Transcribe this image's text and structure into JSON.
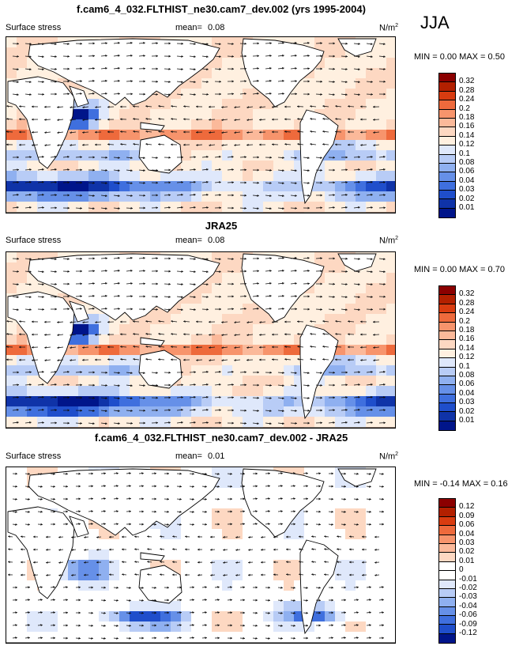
{
  "season": "JJA",
  "panels": [
    {
      "title": "f.cam6_4_032.FLTHIST_ne30.cam7_dev.002 (yrs 1995-2004)",
      "variable": "Surface stress",
      "mean_label": "mean=",
      "mean_value": "0.08",
      "units": "N/m",
      "units_exp": "2",
      "minmax": "MIN =  0.00 MAX =  0.50",
      "palette": "abs"
    },
    {
      "title": "JRA25",
      "variable": "Surface stress",
      "mean_label": "mean=",
      "mean_value": "0.08",
      "units": "N/m",
      "units_exp": "2",
      "minmax": "MIN =  0.00 MAX =  0.70",
      "palette": "abs"
    },
    {
      "title": "f.cam6_4_032.FLTHIST_ne30.cam7_dev.002 - JRA25",
      "variable": "Surface stress",
      "mean_label": "mean=",
      "mean_value": "0.01",
      "units": "N/m",
      "units_exp": "2",
      "minmax": "MIN = -0.14 MAX =  0.16",
      "palette": "diff"
    }
  ],
  "colorbars": {
    "abs": {
      "levels": [
        "0.32",
        "0.28",
        "0.24",
        "0.2",
        "0.18",
        "0.16",
        "0.14",
        "0.12",
        "0.1",
        "0.08",
        "0.06",
        "0.04",
        "0.03",
        "0.02",
        "0.01"
      ],
      "colors": [
        "#8b0000",
        "#b32000",
        "#d93c10",
        "#ee6a3c",
        "#f7946c",
        "#fbb99a",
        "#fdd8c2",
        "#fff0e0",
        "#dfe8fb",
        "#b8ccf6",
        "#8fb0f0",
        "#6690e8",
        "#3f6fde",
        "#1f4ecb",
        "#0f33a8",
        "#00158a"
      ]
    },
    "diff": {
      "levels": [
        "0.12",
        "0.09",
        "0.06",
        "0.04",
        "0.03",
        "0.02",
        "0.01",
        "0",
        "-0.01",
        "-0.02",
        "-0.03",
        "-0.04",
        "-0.06",
        "-0.09",
        "-0.12"
      ],
      "colors": [
        "#8b0000",
        "#b32000",
        "#d93c10",
        "#ee6a3c",
        "#f7946c",
        "#fbb99a",
        "#fdd8c2",
        "#ffffff",
        "#ffffff",
        "#dfe8fb",
        "#b8ccf6",
        "#8fb0f0",
        "#6690e8",
        "#3f6fde",
        "#1f4ecb",
        "#00158a"
      ]
    }
  }
}
